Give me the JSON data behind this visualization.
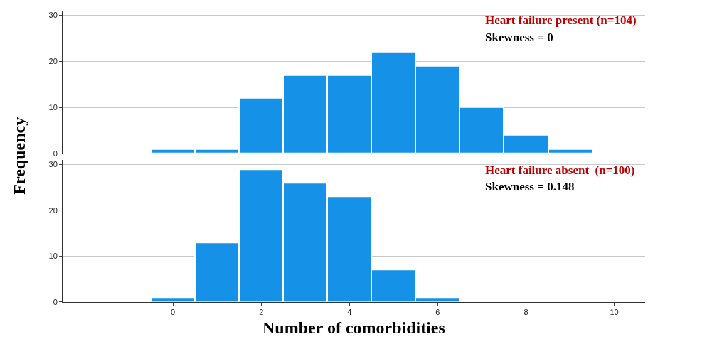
{
  "chart_data": [
    {
      "type": "histogram",
      "bins": [
        -0.5,
        0.5,
        1.5,
        2.5,
        3.5,
        4.5,
        5.5,
        6.5,
        7.5,
        8.5,
        9.5
      ],
      "values": [
        1,
        1,
        12,
        17,
        17,
        22,
        19,
        10,
        4,
        1
      ],
      "color": "#1591e8",
      "xlim": [
        -2.5,
        10.7
      ],
      "xticks": [
        0,
        2,
        4,
        6,
        8,
        10
      ],
      "ylim": [
        0,
        31
      ],
      "yticks": [
        0,
        10,
        20,
        30
      ],
      "grid": "y",
      "tick_labels": "y",
      "ylabel": "Frequency",
      "annotations": [
        "Heart failure present (n=104)",
        "Skewness = 0"
      ]
    },
    {
      "type": "histogram",
      "bins": [
        -0.5,
        0.5,
        1.5,
        2.5,
        3.5,
        4.5,
        5.5,
        6.5
      ],
      "values": [
        1,
        13,
        29,
        26,
        23,
        7,
        1
      ],
      "color": "#1591e8",
      "xlim": [
        -2.5,
        10.7
      ],
      "xticks": [
        0,
        2,
        4,
        6,
        8,
        10
      ],
      "ylim": [
        0,
        31
      ],
      "yticks": [
        0,
        10,
        20,
        30
      ],
      "grid": "y",
      "xlabel": "Number of comorbidities",
      "annotations": [
        "Heart failure absent  (n=100)",
        "Skewness = 0.148"
      ]
    }
  ]
}
